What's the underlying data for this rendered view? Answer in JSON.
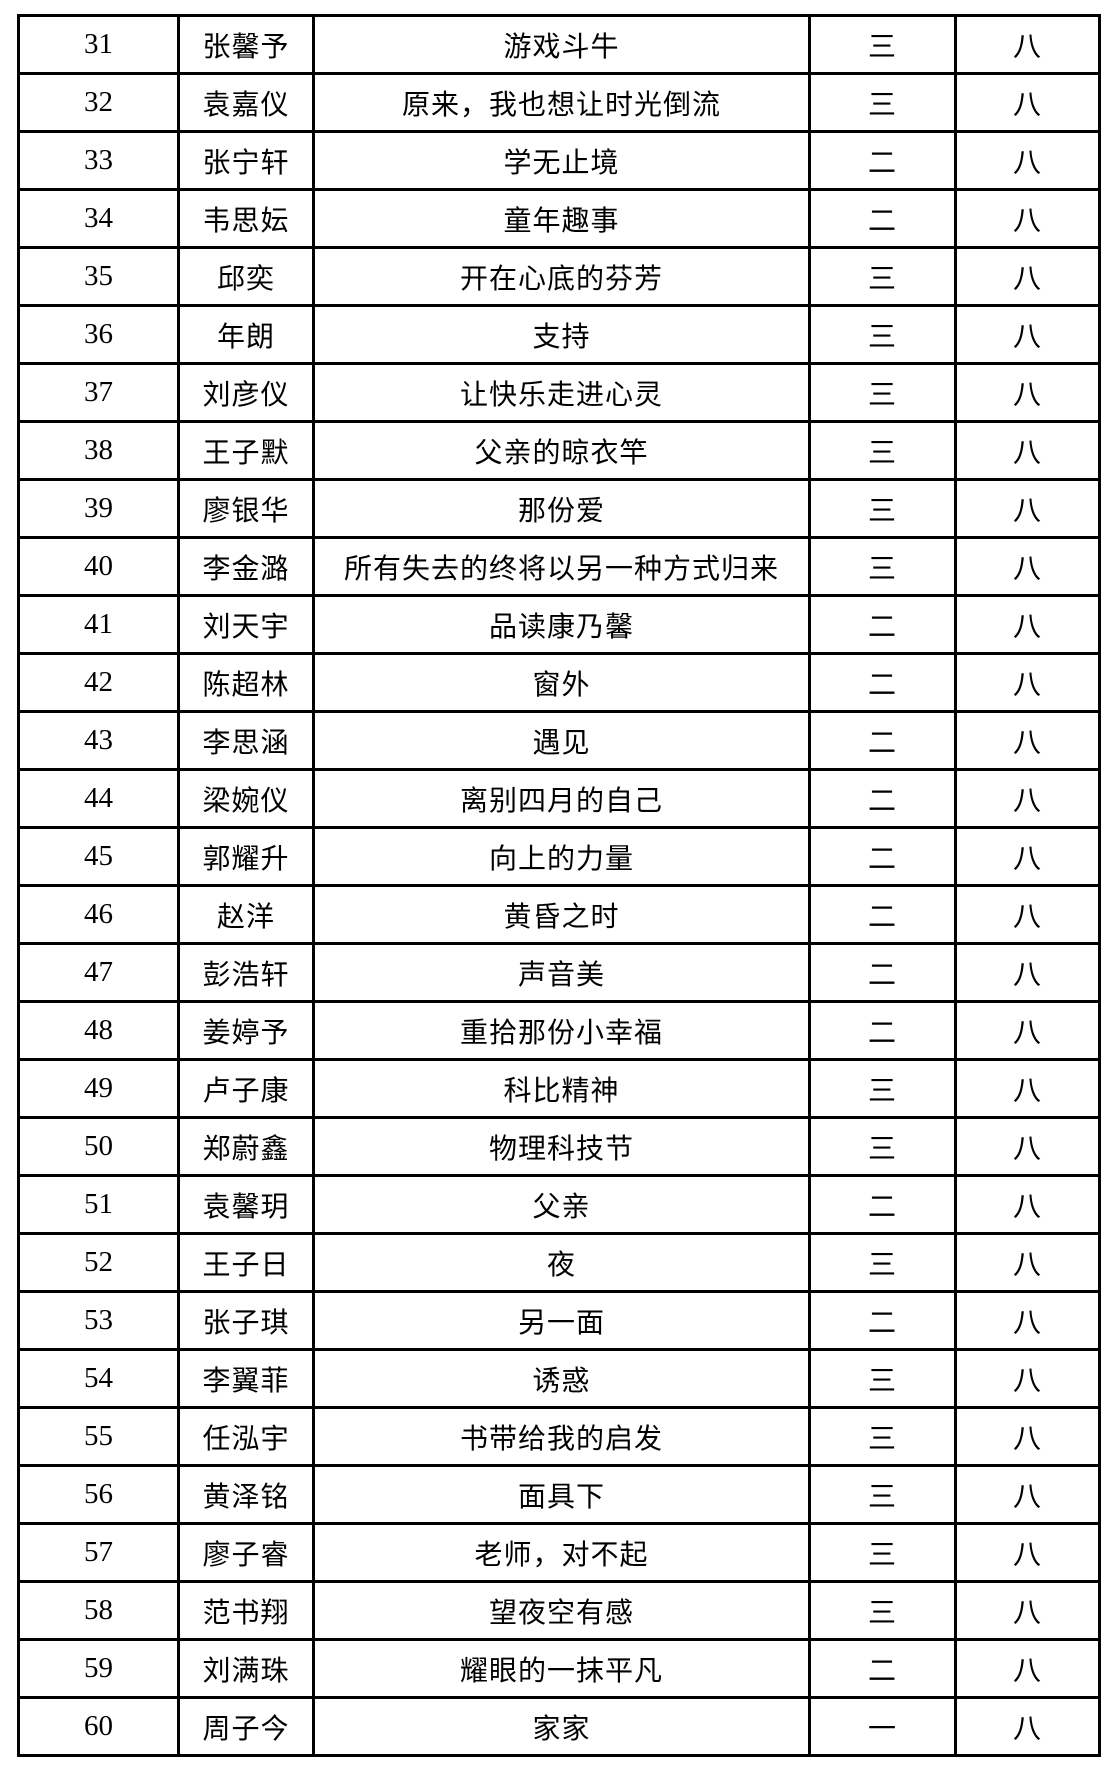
{
  "table": {
    "columns": [
      "number",
      "name",
      "title",
      "level",
      "grade"
    ],
    "rows": [
      {
        "number": "31",
        "name": "张馨予",
        "title": "游戏斗牛",
        "level": "三",
        "grade": "八"
      },
      {
        "number": "32",
        "name": "袁嘉仪",
        "title": "原来，我也想让时光倒流",
        "level": "三",
        "grade": "八"
      },
      {
        "number": "33",
        "name": "张宁轩",
        "title": "学无止境",
        "level": "二",
        "grade": "八"
      },
      {
        "number": "34",
        "name": "韦思妘",
        "title": "童年趣事",
        "level": "二",
        "grade": "八"
      },
      {
        "number": "35",
        "name": "邱奕",
        "title": "开在心底的芬芳",
        "level": "三",
        "grade": "八"
      },
      {
        "number": "36",
        "name": "年朗",
        "title": "支持",
        "level": "三",
        "grade": "八"
      },
      {
        "number": "37",
        "name": "刘彦仪",
        "title": "让快乐走进心灵",
        "level": "三",
        "grade": "八"
      },
      {
        "number": "38",
        "name": "王子默",
        "title": "父亲的晾衣竿",
        "level": "三",
        "grade": "八"
      },
      {
        "number": "39",
        "name": "廖银华",
        "title": "那份爱",
        "level": "三",
        "grade": "八"
      },
      {
        "number": "40",
        "name": "李金潞",
        "title": "所有失去的终将以另一种方式归来",
        "level": "三",
        "grade": "八"
      },
      {
        "number": "41",
        "name": "刘天宇",
        "title": "品读康乃馨",
        "level": "二",
        "grade": "八"
      },
      {
        "number": "42",
        "name": "陈超林",
        "title": "窗外",
        "level": "二",
        "grade": "八"
      },
      {
        "number": "43",
        "name": "李思涵",
        "title": "遇见",
        "level": "二",
        "grade": "八"
      },
      {
        "number": "44",
        "name": "梁婉仪",
        "title": "离别四月的自己",
        "level": "二",
        "grade": "八"
      },
      {
        "number": "45",
        "name": "郭耀升",
        "title": "向上的力量",
        "level": "二",
        "grade": "八"
      },
      {
        "number": "46",
        "name": "赵洋",
        "title": "黄昏之时",
        "level": "二",
        "grade": "八"
      },
      {
        "number": "47",
        "name": "彭浩轩",
        "title": "声音美",
        "level": "二",
        "grade": "八"
      },
      {
        "number": "48",
        "name": "姜婷予",
        "title": "重拾那份小幸福",
        "level": "二",
        "grade": "八"
      },
      {
        "number": "49",
        "name": "卢子康",
        "title": "科比精神",
        "level": "三",
        "grade": "八"
      },
      {
        "number": "50",
        "name": "郑蔚鑫",
        "title": "物理科技节",
        "level": "三",
        "grade": "八"
      },
      {
        "number": "51",
        "name": "袁馨玥",
        "title": "父亲",
        "level": "二",
        "grade": "八"
      },
      {
        "number": "52",
        "name": "王子日",
        "title": "夜",
        "level": "三",
        "grade": "八"
      },
      {
        "number": "53",
        "name": "张子琪",
        "title": "另一面",
        "level": "二",
        "grade": "八"
      },
      {
        "number": "54",
        "name": "李翼菲",
        "title": "诱惑",
        "level": "三",
        "grade": "八"
      },
      {
        "number": "55",
        "name": "任泓宇",
        "title": "书带给我的启发",
        "level": "三",
        "grade": "八"
      },
      {
        "number": "56",
        "name": "黄泽铭",
        "title": "面具下",
        "level": "三",
        "grade": "八"
      },
      {
        "number": "57",
        "name": "廖子睿",
        "title": "老师，对不起",
        "level": "三",
        "grade": "八"
      },
      {
        "number": "58",
        "name": "范书翔",
        "title": "望夜空有感",
        "level": "三",
        "grade": "八"
      },
      {
        "number": "59",
        "name": "刘满珠",
        "title": "耀眼的一抹平凡",
        "level": "二",
        "grade": "八"
      },
      {
        "number": "60",
        "name": "周子今",
        "title": "家家",
        "level": "一",
        "grade": "八"
      }
    ]
  }
}
